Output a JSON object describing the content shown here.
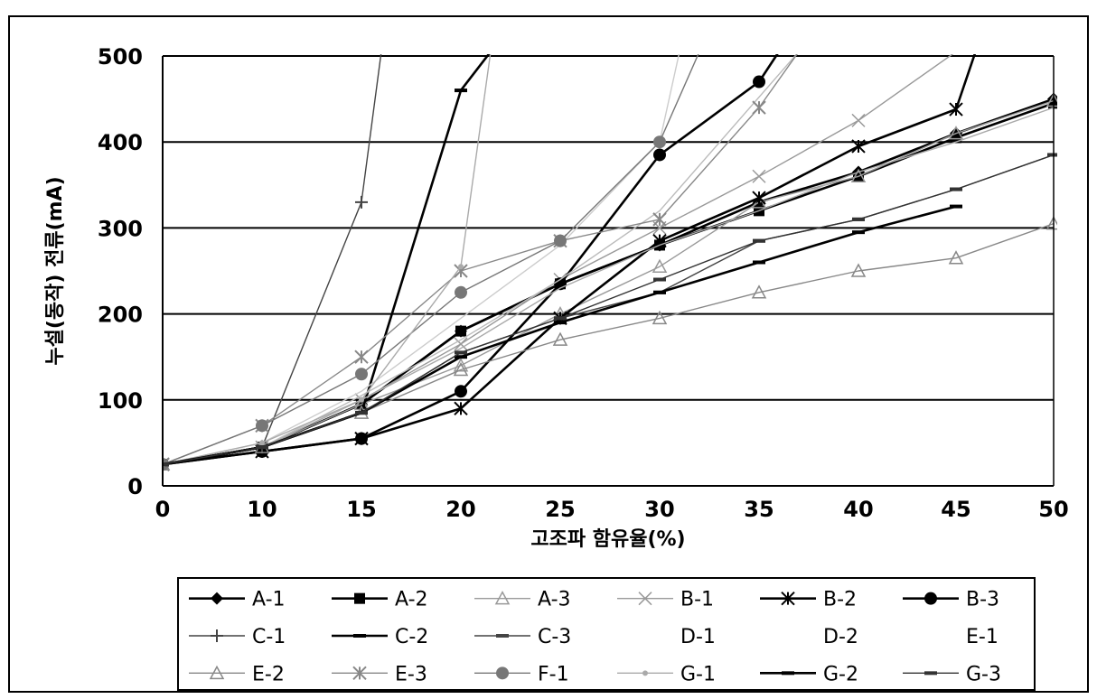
{
  "chart_data": {
    "type": "line",
    "xlabel": "고조파 함유율(%)",
    "ylabel": "누설(동작) 전류(mA)",
    "xlim": [
      0,
      50
    ],
    "ylim": [
      0,
      500
    ],
    "x_ticks": [
      "0",
      "10",
      "15",
      "20",
      "25",
      "30",
      "35",
      "40",
      "45",
      "50"
    ],
    "y_ticks": [
      "0",
      "100",
      "200",
      "300",
      "400",
      "500"
    ],
    "grid": "horizontal",
    "legend_position": "bottom",
    "series": [
      {
        "name": "A-1",
        "color": "#000000",
        "marker": "diamond",
        "x": [
          0,
          10,
          15,
          20,
          25,
          30,
          35,
          40,
          45,
          50
        ],
        "y": [
          25,
          45,
          95,
          180,
          235,
          280,
          330,
          365,
          410,
          450
        ]
      },
      {
        "name": "A-2",
        "color": "#000000",
        "marker": "square",
        "x": [
          0,
          10,
          15,
          20,
          25,
          30,
          35,
          40,
          45,
          50
        ],
        "y": [
          25,
          45,
          95,
          180,
          235,
          280,
          320,
          360,
          405,
          445
        ]
      },
      {
        "name": "A-3",
        "color": "#999999",
        "marker": "triangle",
        "x": [
          0,
          10,
          15,
          20,
          25,
          30,
          35,
          40,
          45,
          50
        ],
        "y": [
          25,
          45,
          95,
          140,
          200,
          255,
          330,
          360,
          410,
          448
        ]
      },
      {
        "name": "B-1",
        "color": "#999999",
        "marker": "x",
        "x": [
          0,
          10,
          15,
          20,
          25,
          30,
          35,
          40,
          45
        ],
        "y": [
          25,
          45,
          100,
          165,
          240,
          300,
          360,
          425,
          505
        ]
      },
      {
        "name": "B-2",
        "color": "#000000",
        "marker": "star",
        "x": [
          0,
          10,
          15,
          20,
          25,
          30,
          35,
          40,
          45,
          46
        ],
        "y": [
          25,
          40,
          55,
          90,
          195,
          285,
          335,
          395,
          438,
          505
        ]
      },
      {
        "name": "B-3",
        "color": "#000000",
        "marker": "circle",
        "x": [
          0,
          10,
          15,
          20,
          25,
          30,
          35,
          36
        ],
        "y": [
          25,
          40,
          55,
          110,
          235,
          385,
          470,
          505
        ]
      },
      {
        "name": "C-1",
        "color": "#444444",
        "marker": "plus",
        "x": [
          0,
          10,
          15,
          16
        ],
        "y": [
          25,
          45,
          330,
          505
        ]
      },
      {
        "name": "C-2",
        "color": "#000000",
        "marker": "dash",
        "x": [
          0,
          10,
          15,
          20,
          21.5
        ],
        "y": [
          25,
          45,
          85,
          460,
          505
        ]
      },
      {
        "name": "C-3",
        "color": "#444444",
        "marker": "dash",
        "x": [
          0,
          10,
          15,
          20,
          25,
          30,
          35,
          40,
          45,
          50
        ],
        "y": [
          25,
          45,
          85,
          155,
          195,
          225,
          285,
          310,
          345,
          385
        ]
      },
      {
        "name": "D-1",
        "color": "#aaaaaa",
        "marker": "none",
        "x": [
          0,
          10,
          15,
          20,
          25,
          30,
          35,
          40,
          45,
          50
        ],
        "y": [
          25,
          45,
          100,
          160,
          230,
          280,
          320,
          365,
          400,
          440
        ]
      },
      {
        "name": "D-2",
        "color": "#bbbbbb",
        "marker": "none",
        "x": [
          0,
          10,
          15,
          20,
          25,
          30,
          37
        ],
        "y": [
          25,
          45,
          105,
          170,
          240,
          320,
          505
        ]
      },
      {
        "name": "E-1",
        "color": "#cccccc",
        "marker": "none",
        "x": [
          0,
          10,
          15,
          20,
          25,
          30,
          31
        ],
        "y": [
          25,
          50,
          110,
          195,
          280,
          400,
          505
        ]
      },
      {
        "name": "E-2",
        "color": "#888888",
        "marker": "triangle",
        "x": [
          0,
          10,
          15,
          20,
          25,
          30,
          35,
          40,
          45,
          50
        ],
        "y": [
          25,
          45,
          85,
          135,
          170,
          195,
          225,
          250,
          265,
          305
        ]
      },
      {
        "name": "E-3",
        "color": "#888888",
        "marker": "star",
        "x": [
          0,
          10,
          15,
          20,
          25,
          30,
          35,
          37
        ],
        "y": [
          25,
          70,
          150,
          250,
          285,
          310,
          440,
          505
        ]
      },
      {
        "name": "F-1",
        "color": "#777777",
        "marker": "circle",
        "x": [
          0,
          10,
          15,
          20,
          25,
          30,
          32
        ],
        "y": [
          25,
          70,
          130,
          225,
          285,
          400,
          505
        ]
      },
      {
        "name": "G-1",
        "color": "#aaaaaa",
        "marker": "dot",
        "x": [
          0,
          10,
          15,
          20,
          21.5
        ],
        "y": [
          25,
          50,
          100,
          255,
          505
        ]
      },
      {
        "name": "G-2",
        "color": "#000000",
        "marker": "dash",
        "x": [
          0,
          10,
          15,
          20,
          25,
          30,
          35,
          40,
          45
        ],
        "y": [
          25,
          45,
          85,
          150,
          190,
          225,
          260,
          295,
          325
        ]
      },
      {
        "name": "G-3",
        "color": "#333333",
        "marker": "dash",
        "x": [
          0,
          10,
          15,
          20,
          25,
          30,
          35,
          40,
          45,
          50
        ],
        "y": [
          25,
          45,
          85,
          155,
          195,
          240,
          285,
          310,
          345,
          385
        ]
      }
    ]
  }
}
